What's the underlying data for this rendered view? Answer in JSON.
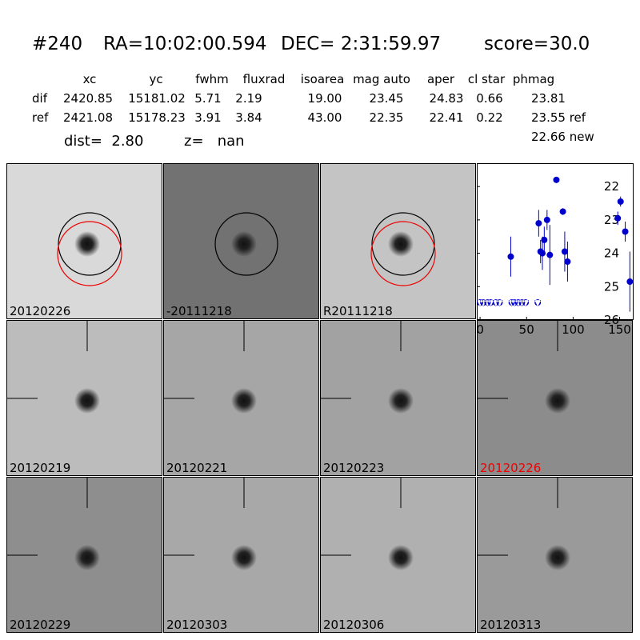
{
  "header": {
    "id": "#240",
    "ra": "RA=10:02:00.594",
    "dec": "DEC= 2:31:59.97",
    "score": "score=30.0"
  },
  "table": {
    "columns": [
      "xc",
      "yc",
      "fwhm",
      "fluxrad",
      "isoarea",
      "mag auto",
      "aper",
      "cl star",
      "phmag"
    ],
    "rows": [
      {
        "label": "dif",
        "cells": [
          "2420.85",
          "15181.02",
          "5.71",
          "2.19",
          "19.00",
          "23.45",
          "24.83",
          "0.66",
          "23.81"
        ]
      },
      {
        "label": "ref",
        "cells": [
          "2421.08",
          "15178.23",
          "3.91",
          "3.84",
          "43.00",
          "22.35",
          "22.41",
          "0.22",
          "23.55 ref"
        ]
      }
    ],
    "extra": "22.66 new"
  },
  "dist": "dist=  2.80",
  "z": "z=   nan",
  "panels": [
    "20120226",
    "-20111218",
    "R20111218",
    null,
    "20120219",
    "20120221",
    "20120223",
    "20120226",
    "20120229",
    "20120303",
    "20120306",
    "20120313"
  ],
  "lightcurve": {
    "type": "scatter",
    "xlim": [
      -3.5,
      165
    ],
    "ylim": [
      26,
      21.3
    ],
    "xticks": [
      0,
      50,
      100,
      150
    ],
    "yticks": [
      22,
      23,
      24,
      25,
      26
    ],
    "series": [
      {
        "color": "#0000cc",
        "x": [
          33,
          63,
          65,
          67,
          69,
          72,
          75,
          82,
          89,
          91,
          94,
          148,
          151,
          156,
          161
        ],
        "values": [
          24.1,
          23.1,
          23.95,
          24.0,
          23.6,
          23.0,
          24.05,
          21.8,
          22.75,
          23.95,
          24.25,
          22.95,
          22.45,
          23.35,
          24.85
        ],
        "errors": [
          0.6,
          0.4,
          0.35,
          0.5,
          0.4,
          0.3,
          0.9,
          0.08,
          0.1,
          0.6,
          0.6,
          0.2,
          0.15,
          0.3,
          0.9
        ]
      },
      {
        "color": "#0000cc",
        "x": [
          0,
          3.5,
          8,
          11.5,
          17,
          21,
          34,
          37,
          41,
          45,
          49,
          62
        ],
        "values": [
          25.5,
          25.5,
          25.5,
          25.5,
          25.5,
          25.5,
          25.5,
          25.5,
          25.5,
          25.5,
          25.5,
          25.5
        ]
      }
    ]
  }
}
